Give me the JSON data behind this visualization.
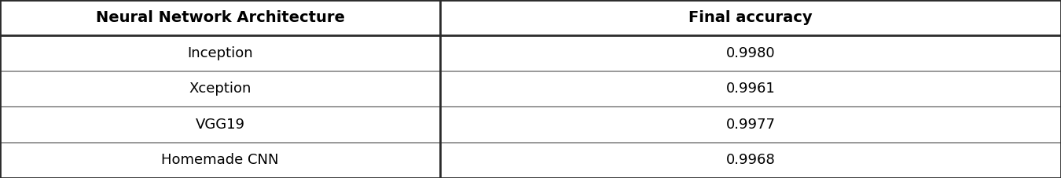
{
  "col_headers": [
    "Neural Network Architecture",
    "Final accuracy"
  ],
  "rows": [
    [
      "Inception",
      "0.9980"
    ],
    [
      "Xception",
      "0.9961"
    ],
    [
      "VGG19",
      "0.9977"
    ],
    [
      "Homemade CNN",
      "0.9968"
    ]
  ],
  "header_bg": "#ffffff",
  "row_bg": "#ffffff",
  "border_color_header": "#2b2b2b",
  "border_color_row": "#888888",
  "header_fontsize": 14,
  "cell_fontsize": 13,
  "header_fontweight": "bold",
  "cell_fontweight": "normal",
  "fig_width": 13.5,
  "fig_height": 2.27,
  "col_split": 0.415,
  "dpi": 100
}
